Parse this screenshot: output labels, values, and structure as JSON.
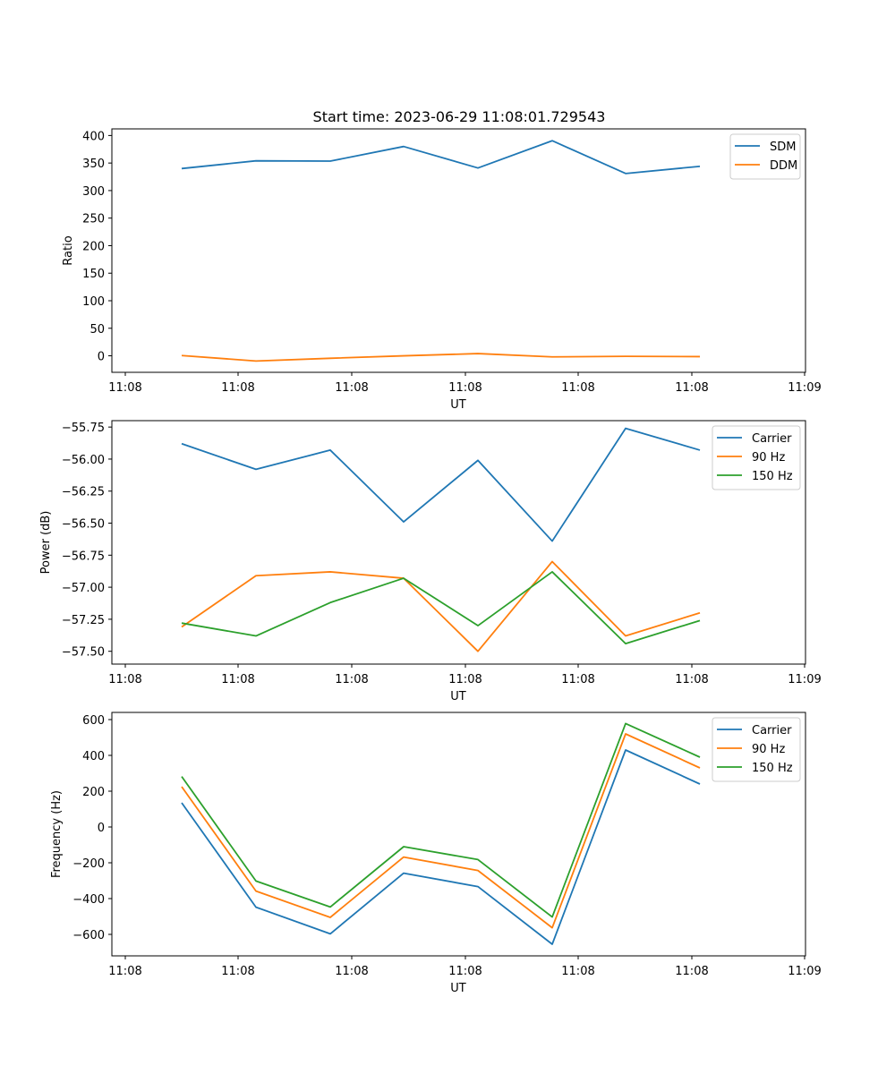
{
  "figure": {
    "title": "Start time: 2023-06-29 11:08:01.729543"
  },
  "chart_data": [
    {
      "type": "line",
      "xlabel": "UT",
      "ylabel": "Ratio",
      "x_tick_labels": [
        "11:08",
        "11:08",
        "11:08",
        "11:08",
        "11:08",
        "11:08",
        "11:08"
      ],
      "x_index": [
        0,
        1,
        2,
        3,
        4,
        5,
        6,
        7
      ],
      "ylim": [
        -30,
        412
      ],
      "y_ticks": [
        0,
        50,
        100,
        150,
        200,
        250,
        300,
        350,
        400
      ],
      "legend_position": "upper-right",
      "series": [
        {
          "name": "SDM",
          "color": "#1f77b4",
          "values": [
            340,
            354,
            353.5,
            380,
            341,
            390.5,
            331,
            344
          ]
        },
        {
          "name": "DDM",
          "color": "#ff7f0e",
          "values": [
            0.5,
            -9.5,
            -4.5,
            0,
            4,
            -2,
            -1,
            -1.5
          ]
        }
      ]
    },
    {
      "type": "line",
      "xlabel": "UT",
      "ylabel": "Power (dB)",
      "x_tick_labels": [
        "11:08",
        "11:08",
        "11:08",
        "11:08",
        "11:08",
        "11:08",
        "11:08"
      ],
      "x_index": [
        0,
        1,
        2,
        3,
        4,
        5,
        6,
        7
      ],
      "ylim": [
        -57.6,
        -55.7
      ],
      "y_ticks": [
        -57.5,
        -57.25,
        -57.0,
        -56.75,
        -56.5,
        -56.25,
        -56.0,
        -55.75
      ],
      "y_tick_labels": [
        "−57.50",
        "−57.25",
        "−57.00",
        "−56.75",
        "−56.50",
        "−56.25",
        "−56.00",
        "−55.75"
      ],
      "legend_position": "upper-right",
      "series": [
        {
          "name": "Carrier",
          "color": "#1f77b4",
          "values": [
            -55.88,
            -56.08,
            -55.93,
            -56.49,
            -56.01,
            -56.64,
            -55.76,
            -55.93
          ]
        },
        {
          "name": "90 Hz",
          "color": "#ff7f0e",
          "values": [
            -57.31,
            -56.91,
            -56.88,
            -56.93,
            -57.5,
            -56.8,
            -57.38,
            -57.2
          ]
        },
        {
          "name": "150 Hz",
          "color": "#2ca02c",
          "values": [
            -57.28,
            -57.38,
            -57.12,
            -56.93,
            -57.3,
            -56.88,
            -57.44,
            -57.26
          ]
        }
      ]
    },
    {
      "type": "line",
      "xlabel": "UT",
      "ylabel": "Frequency (Hz)",
      "x_tick_labels": [
        "11:08",
        "11:08",
        "11:08",
        "11:08",
        "11:08",
        "11:08",
        "11:08"
      ],
      "x_index": [
        0,
        1,
        2,
        3,
        4,
        5,
        6,
        7
      ],
      "ylim": [
        -720,
        640
      ],
      "y_ticks": [
        -600,
        -400,
        -200,
        0,
        200,
        400,
        600
      ],
      "y_tick_labels": [
        "−600",
        "−400",
        "−200",
        "0",
        "200",
        "400",
        "600"
      ],
      "legend_position": "upper-right",
      "series": [
        {
          "name": "Carrier",
          "color": "#1f77b4",
          "values": [
            135,
            -448,
            -597,
            -258,
            -333,
            -655,
            430,
            240
          ]
        },
        {
          "name": "90 Hz",
          "color": "#ff7f0e",
          "values": [
            225,
            -358,
            -505,
            -168,
            -243,
            -563,
            520,
            330
          ]
        },
        {
          "name": "150 Hz",
          "color": "#2ca02c",
          "values": [
            282,
            -302,
            -447,
            -110,
            -182,
            -503,
            578,
            390
          ]
        }
      ]
    }
  ],
  "x_axis": {
    "tick_labels": [
      "11:08",
      "11:08",
      "11:08",
      "11:08",
      "11:08",
      "11:08",
      "11:09"
    ]
  }
}
